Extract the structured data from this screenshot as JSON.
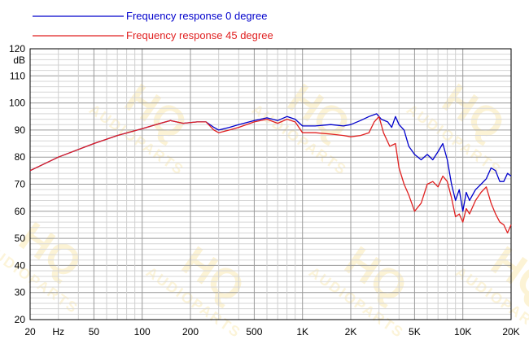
{
  "watermark": {
    "brand": "HQ",
    "sub": "AUDIOPARTS",
    "color": "#f7d56a"
  },
  "chart_data": {
    "type": "line",
    "title": "",
    "xlabel": "",
    "ylabel": "dB",
    "x_scale": "log",
    "xlim": [
      20,
      20000
    ],
    "ylim": [
      20,
      120
    ],
    "y_ticks": [
      20,
      30,
      40,
      50,
      60,
      70,
      80,
      90,
      100,
      110,
      120
    ],
    "x_ticks": [
      {
        "value": 20,
        "label": "20"
      },
      {
        "value": 30,
        "label": "Hz"
      },
      {
        "value": 50,
        "label": "50"
      },
      {
        "value": 100,
        "label": "100"
      },
      {
        "value": 200,
        "label": "200"
      },
      {
        "value": 500,
        "label": "500"
      },
      {
        "value": 1000,
        "label": "1K"
      },
      {
        "value": 2000,
        "label": "2K"
      },
      {
        "value": 5000,
        "label": "5K"
      },
      {
        "value": 10000,
        "label": "10K"
      },
      {
        "value": 20000,
        "label": "20K"
      }
    ],
    "grid": true,
    "legend_position": "top-left",
    "series": [
      {
        "name": "Frequency response 0 degree",
        "color": "#0000cc",
        "x": [
          20,
          30,
          50,
          70,
          100,
          130,
          150,
          180,
          220,
          250,
          280,
          300,
          350,
          400,
          500,
          600,
          700,
          800,
          900,
          1000,
          1200,
          1500,
          1800,
          2000,
          2300,
          2600,
          2900,
          3100,
          3400,
          3600,
          3800,
          4000,
          4300,
          4600,
          5000,
          5500,
          6000,
          6500,
          7000,
          7500,
          8000,
          8500,
          9000,
          9500,
          10000,
          10500,
          11000,
          12000,
          13000,
          14000,
          15000,
          16000,
          17000,
          18000,
          19000,
          20000
        ],
        "y": [
          75,
          80,
          85,
          88,
          90.5,
          92.5,
          93.5,
          92.5,
          93,
          93,
          91,
          90,
          91,
          92,
          93.5,
          94.5,
          93.5,
          95,
          94,
          91.5,
          91.5,
          92,
          91.5,
          92,
          93.5,
          95,
          96,
          94,
          93,
          91,
          95,
          92,
          90,
          84,
          81,
          79,
          81,
          79,
          82,
          85,
          79,
          70,
          64,
          68,
          60,
          67,
          64,
          68,
          70,
          72,
          76,
          75,
          71,
          71,
          74,
          73
        ]
      },
      {
        "name": "Frequency response 45 degree",
        "color": "#e02020",
        "x": [
          20,
          30,
          50,
          70,
          100,
          130,
          150,
          180,
          220,
          250,
          280,
          300,
          350,
          400,
          500,
          600,
          700,
          800,
          900,
          1000,
          1200,
          1500,
          1800,
          2000,
          2300,
          2600,
          2800,
          3000,
          3200,
          3500,
          3800,
          4000,
          4300,
          4600,
          5000,
          5500,
          6000,
          6500,
          7000,
          7500,
          8000,
          8500,
          9000,
          9500,
          10000,
          10500,
          11000,
          12000,
          13000,
          14000,
          15000,
          16000,
          17000,
          18000,
          19000,
          20000
        ],
        "y": [
          75,
          80,
          85,
          88,
          90.5,
          92.5,
          93.5,
          92.5,
          93,
          93,
          90,
          89,
          90,
          91,
          93,
          94,
          92.5,
          94,
          93,
          89,
          89,
          88.5,
          88,
          87.5,
          88,
          89,
          93,
          95,
          89,
          84,
          85,
          76,
          70,
          66,
          60,
          63,
          70,
          71,
          69,
          73,
          71,
          65,
          58,
          59,
          56,
          61,
          59,
          64,
          67,
          69,
          63,
          59,
          56,
          55,
          52,
          55
        ]
      }
    ]
  }
}
